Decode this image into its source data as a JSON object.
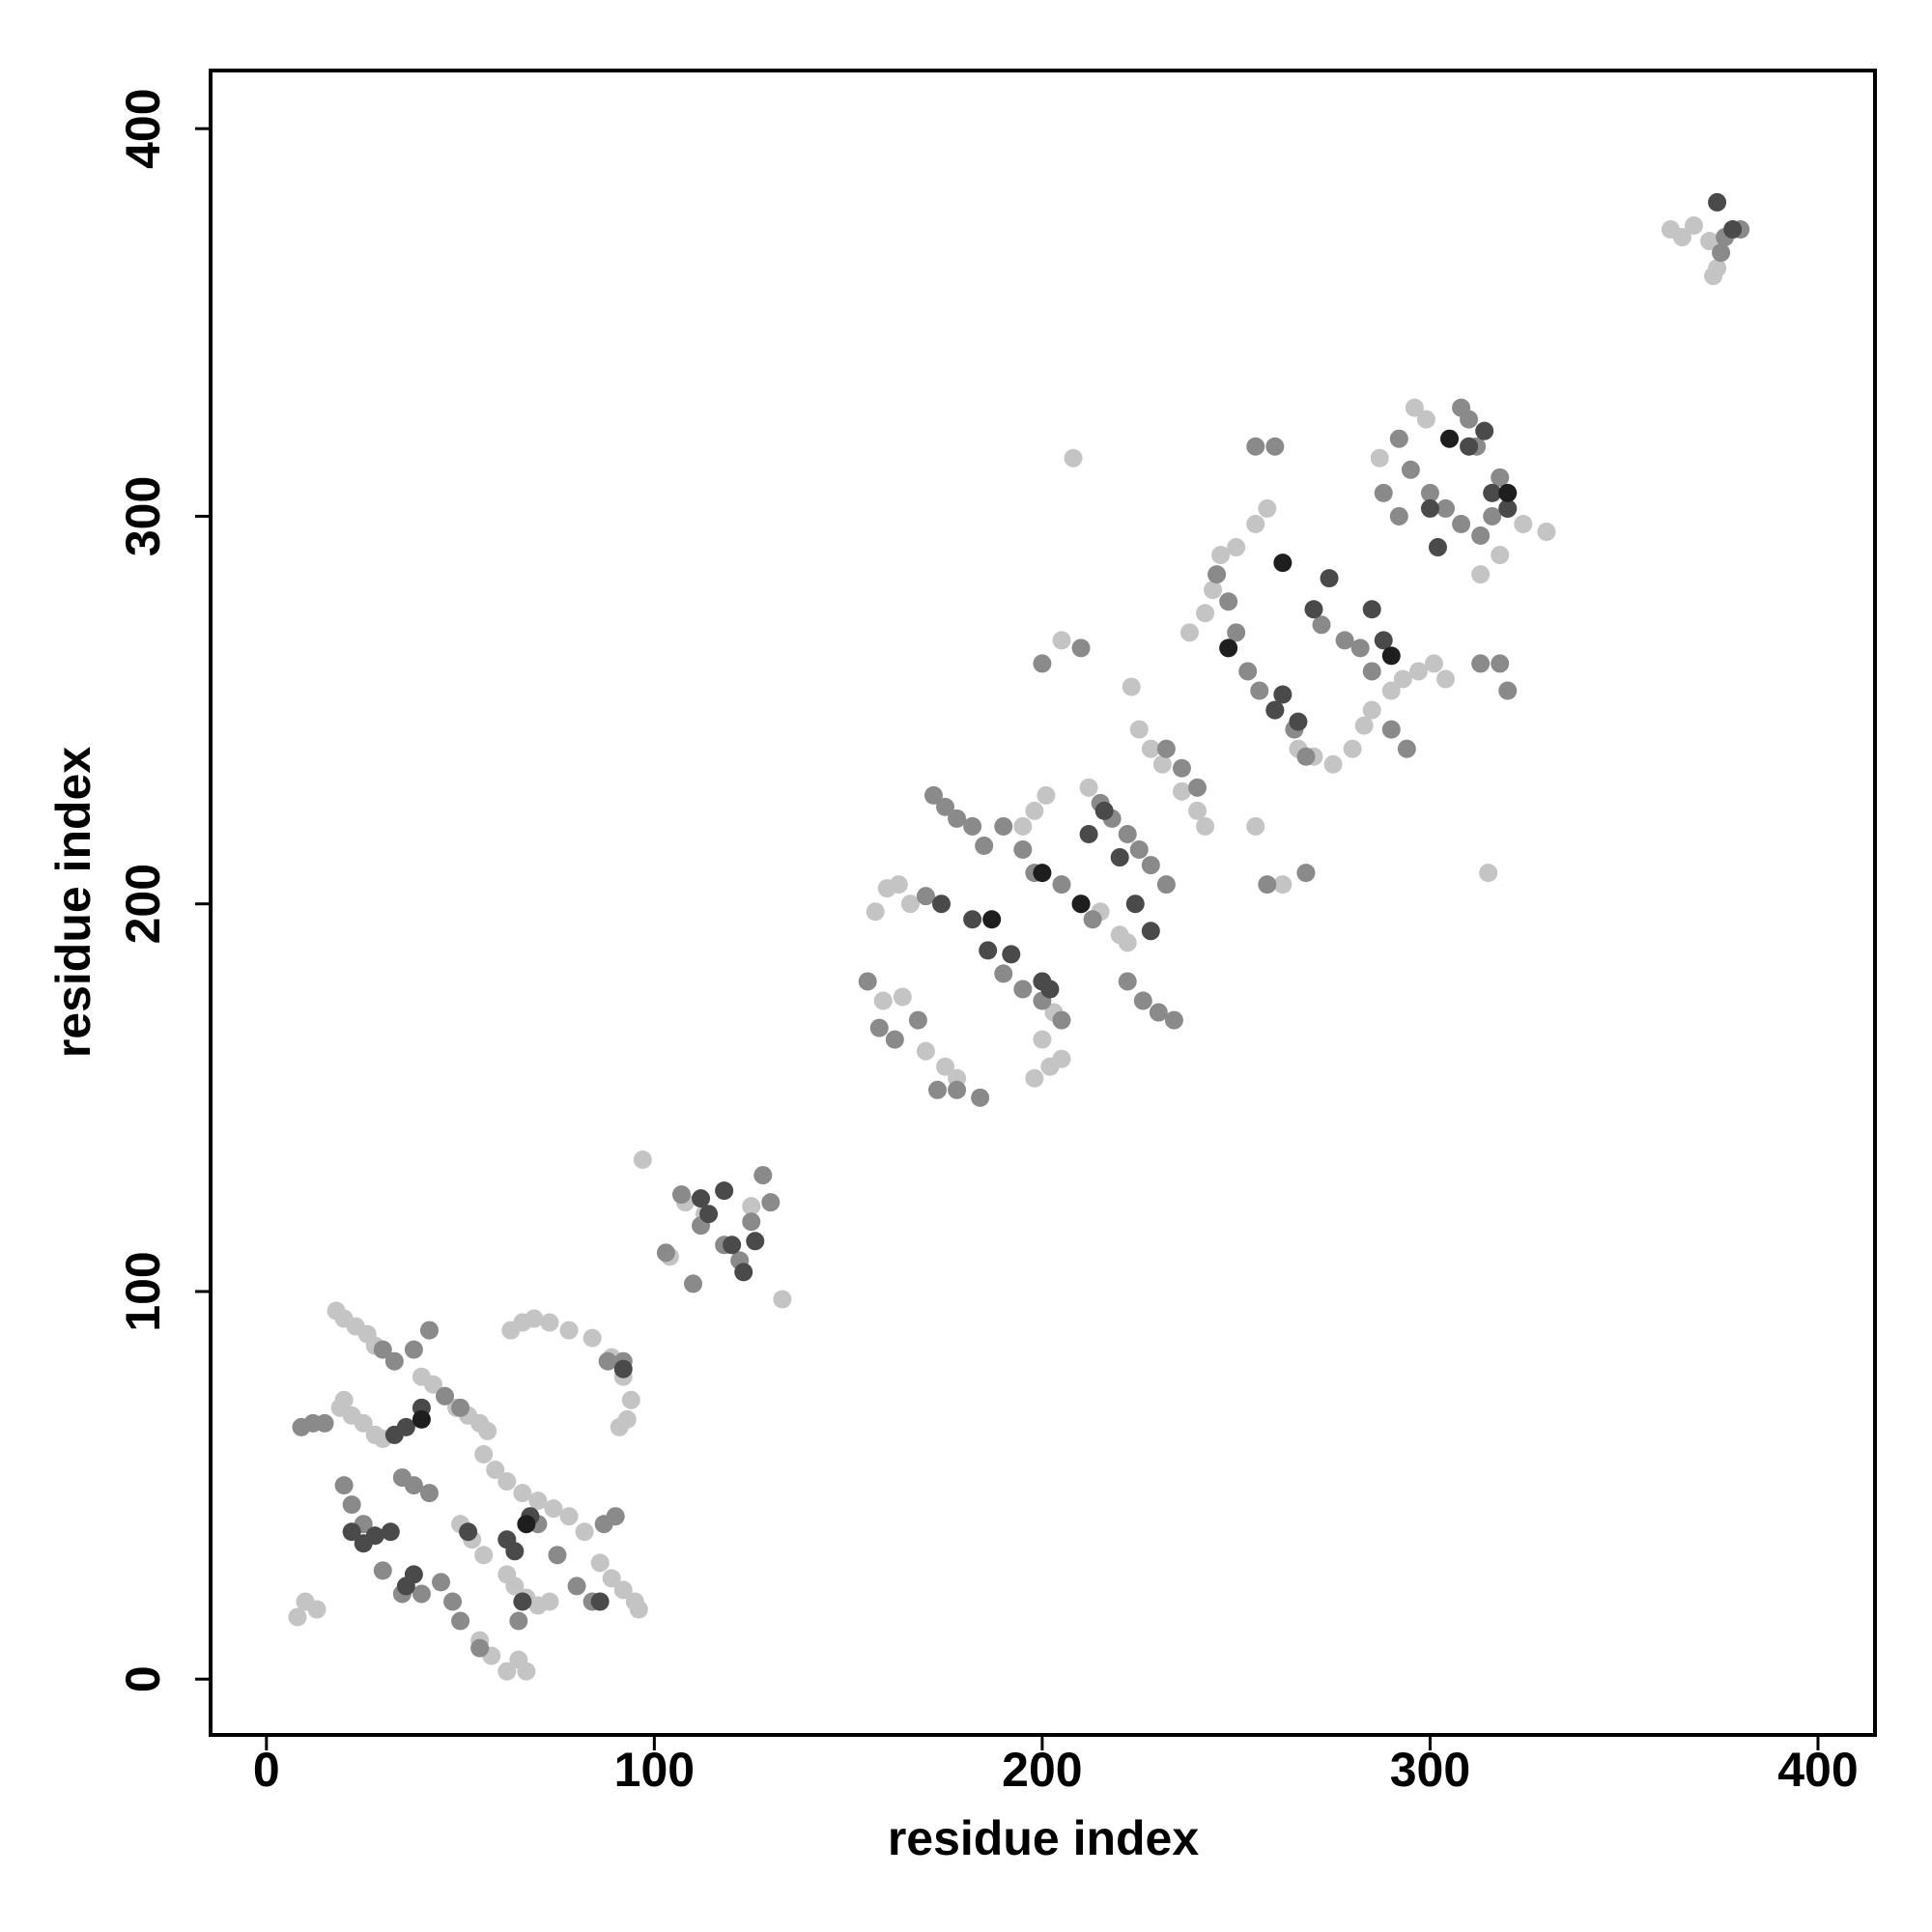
{
  "chart_data": {
    "type": "scatter",
    "xlabel": "residue index",
    "ylabel": "residue index",
    "xlim": [
      -14.4,
      414.7
    ],
    "ylim": [
      -14.4,
      415
    ],
    "xticks": [
      0,
      100,
      200,
      300,
      400
    ],
    "yticks": [
      0,
      100,
      200,
      300,
      400
    ],
    "series": [
      {
        "color": "#c4c4c4",
        "x": [
          18,
          20,
          23,
          26,
          28,
          20,
          22,
          25,
          28,
          30,
          19,
          40,
          43,
          46,
          49,
          52,
          55,
          57,
          63,
          66,
          69,
          73,
          78,
          84,
          89,
          92,
          94,
          93,
          91,
          62,
          64,
          67,
          70,
          73,
          65,
          62,
          67,
          56,
          59,
          62,
          66,
          70,
          74,
          78,
          82,
          86,
          89,
          92,
          95,
          96,
          50,
          53,
          56,
          58,
          55,
          10,
          13,
          8,
          97,
          108,
          113,
          125,
          133,
          104,
          157,
          160,
          163,
          166,
          164,
          159,
          175,
          178,
          170,
          198,
          202,
          205,
          200,
          203,
          195,
          198,
          201,
          208,
          205,
          212,
          215,
          220,
          222,
          223,
          225,
          228,
          231,
          236,
          240,
          242,
          246,
          250,
          255,
          258,
          255,
          262,
          266,
          270,
          275,
          280,
          283,
          285,
          290,
          293,
          297,
          301,
          304,
          296,
          299,
          287,
          315,
          313,
          318,
          324,
          330,
          238,
          242,
          244,
          362,
          365,
          368,
          372,
          374,
          373
        ],
        "values": [
          95,
          93,
          91,
          89,
          86,
          72,
          68,
          66,
          63,
          62,
          70,
          78,
          76,
          73,
          70,
          68,
          66,
          64,
          90,
          92,
          93,
          92,
          90,
          88,
          83,
          78,
          72,
          67,
          65,
          27,
          24,
          21,
          19,
          20,
          5,
          2,
          2,
          58,
          54,
          51,
          48,
          46,
          44,
          42,
          38,
          30,
          26,
          23,
          20,
          18,
          40,
          36,
          32,
          6,
          10,
          20,
          18,
          16,
          134,
          123,
          120,
          122,
          98,
          109,
          198,
          204,
          205,
          200,
          176,
          175,
          158,
          155,
          162,
          155,
          158,
          160,
          165,
          172,
          220,
          224,
          228,
          315,
          268,
          230,
          198,
          192,
          190,
          256,
          245,
          240,
          236,
          229,
          224,
          220,
          290,
          292,
          298,
          302,
          220,
          205,
          240,
          238,
          236,
          240,
          246,
          250,
          255,
          258,
          260,
          262,
          258,
          328,
          325,
          315,
          208,
          285,
          290,
          298,
          296,
          270,
          275,
          281,
          374,
          372,
          375,
          371,
          364,
          362
        ]
      },
      {
        "color": "#8a8a8a",
        "x": [
          20,
          22,
          25,
          30,
          35,
          40,
          45,
          48,
          15,
          12,
          9,
          30,
          33,
          38,
          42,
          46,
          50,
          35,
          38,
          42,
          50,
          55,
          65,
          70,
          75,
          80,
          84,
          87,
          90,
          88,
          92,
          107,
          112,
          118,
          122,
          125,
          128,
          130,
          110,
          103,
          155,
          158,
          162,
          168,
          170,
          172,
          175,
          178,
          182,
          185,
          173,
          178,
          184,
          190,
          195,
          198,
          205,
          210,
          213,
          215,
          218,
          222,
          225,
          228,
          232,
          190,
          195,
          200,
          205,
          210,
          200,
          222,
          226,
          230,
          234,
          232,
          236,
          240,
          245,
          248,
          250,
          253,
          256,
          260,
          265,
          268,
          272,
          278,
          282,
          285,
          290,
          294,
          255,
          260,
          258,
          268,
          292,
          295,
          300,
          304,
          308,
          313,
          316,
          320,
          288,
          292,
          312,
          318,
          313,
          318,
          320,
          308,
          310,
          375,
          376,
          380
        ],
        "values": [
          50,
          45,
          40,
          28,
          22,
          22,
          25,
          20,
          66,
          66,
          65,
          85,
          82,
          85,
          90,
          73,
          70,
          52,
          50,
          48,
          15,
          8,
          15,
          40,
          32,
          24,
          20,
          40,
          42,
          82,
          82,
          125,
          117,
          112,
          108,
          118,
          130,
          123,
          102,
          110,
          180,
          168,
          165,
          170,
          202,
          228,
          225,
          222,
          220,
          215,
          152,
          152,
          150,
          220,
          214,
          208,
          205,
          200,
          196,
          226,
          222,
          218,
          214,
          210,
          205,
          182,
          178,
          175,
          170,
          266,
          262,
          180,
          175,
          172,
          170,
          240,
          235,
          230,
          285,
          278,
          270,
          260,
          255,
          250,
          245,
          238,
          272,
          268,
          266,
          260,
          245,
          240,
          318,
          318,
          205,
          208,
          320,
          312,
          306,
          302,
          298,
          295,
          300,
          302,
          306,
          300,
          318,
          310,
          262,
          262,
          255,
          328,
          325,
          368,
          372,
          374
        ]
      },
      {
        "color": "#4a4a4a",
        "x": [
          22,
          25,
          28,
          32,
          33,
          36,
          38,
          36,
          40,
          52,
          62,
          64,
          66,
          68,
          86,
          92,
          112,
          114,
          118,
          120,
          123,
          126,
          174,
          182,
          186,
          192,
          200,
          202,
          212,
          216,
          220,
          224,
          228,
          260,
          262,
          266,
          270,
          274,
          285,
          288,
          300,
          302,
          310,
          314,
          316,
          320,
          374,
          378
        ],
        "values": [
          38,
          35,
          37,
          38,
          63,
          65,
          27,
          24,
          70,
          38,
          36,
          33,
          20,
          42,
          20,
          80,
          124,
          120,
          126,
          112,
          105,
          113,
          200,
          196,
          188,
          187,
          180,
          178,
          218,
          224,
          212,
          200,
          193,
          250,
          254,
          247,
          276,
          284,
          276,
          268,
          302,
          292,
          318,
          322,
          306,
          302,
          381,
          374
        ]
      },
      {
        "color": "#1e1e1e",
        "x": [
          67,
          40,
          187,
          200,
          210,
          248,
          262,
          305,
          320,
          290
        ],
        "values": [
          40,
          67,
          196,
          208,
          200,
          266,
          288,
          320,
          306,
          264
        ]
      }
    ]
  }
}
